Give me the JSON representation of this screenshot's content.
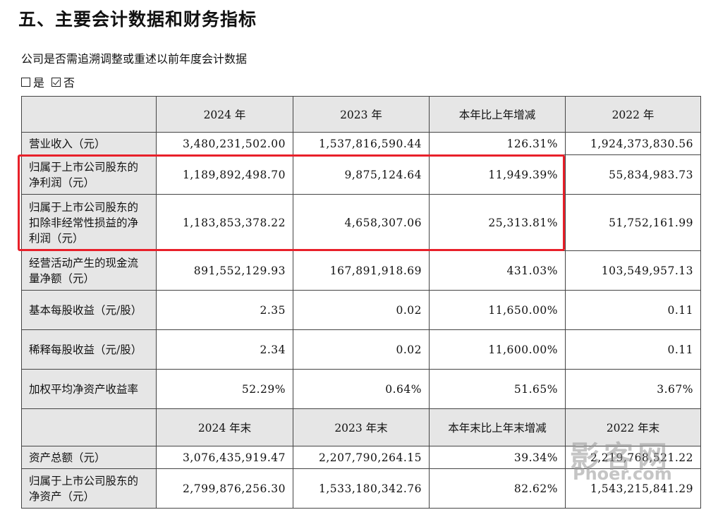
{
  "heading": "五、主要会计数据和财务指标",
  "question": "公司是否需追溯调整或重述以前年度会计数据",
  "options": [
    {
      "label": "是",
      "checked": false
    },
    {
      "label": "否",
      "checked": true
    }
  ],
  "header1": [
    "2024 年",
    "2023 年",
    "本年比上年增减",
    "2022 年"
  ],
  "rows1": [
    {
      "label": "营业收入（元）",
      "values": [
        "3,480,231,502.00",
        "1,537,816,590.44",
        "126.31%",
        "1,924,373,830.56"
      ]
    },
    {
      "label": "归属于上市公司股东的净利润（元）",
      "values": [
        "1,189,892,498.70",
        "9,875,124.64",
        "11,949.39%",
        "55,834,983.73"
      ]
    },
    {
      "label": "归属于上市公司股东的扣除非经常性损益的净利润（元）",
      "values": [
        "1,183,853,378.22",
        "4,658,307.06",
        "25,313.81%",
        "51,752,161.99"
      ]
    },
    {
      "label": "经营活动产生的现金流量净额（元）",
      "values": [
        "891,552,129.93",
        "167,891,918.69",
        "431.03%",
        "103,549,957.13"
      ]
    },
    {
      "label": "基本每股收益（元/股）",
      "values": [
        "2.35",
        "0.02",
        "11,650.00%",
        "0.11"
      ]
    },
    {
      "label": "稀释每股收益（元/股）",
      "values": [
        "2.34",
        "0.02",
        "11,600.00%",
        "0.11"
      ]
    },
    {
      "label": "加权平均净资产收益率",
      "values": [
        "52.29%",
        "0.64%",
        "51.65%",
        "3.67%"
      ]
    }
  ],
  "header2": [
    "2024 年末",
    "2023 年末",
    "本年末比上年末增减",
    "2022 年末"
  ],
  "rows2": [
    {
      "label": "资产总额（元）",
      "values": [
        "3,076,435,919.47",
        "2,207,790,264.15",
        "39.34%",
        "2,219,768,521.22"
      ]
    },
    {
      "label": "归属于上市公司股东的净资产（元）",
      "values": [
        "2,799,876,256.30",
        "1,533,180,342.76",
        "82.62%",
        "1,543,215,841.29"
      ]
    }
  ],
  "watermark": {
    "cn": "影客网",
    "en": "Phoer.com"
  }
}
